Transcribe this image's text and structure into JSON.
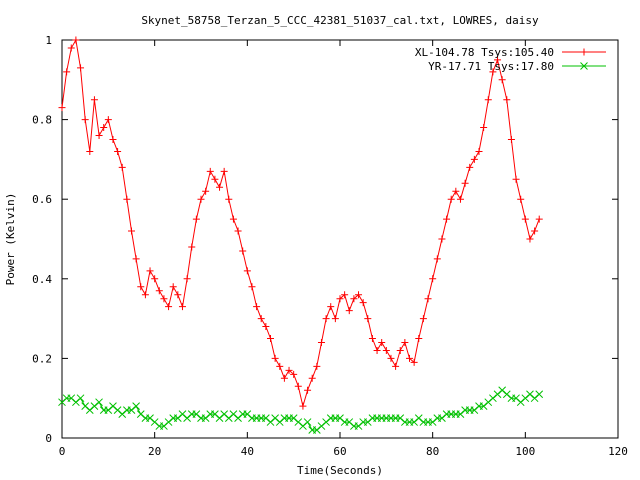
{
  "chart_data": {
    "type": "line",
    "title": "Skynet_58758_Terzan_5_CCC_42381_51037_cal.txt, LOWRES, daisy",
    "xlabel": "Time(Seconds)",
    "ylabel": "Power (Kelvin)",
    "xlim": [
      0,
      120
    ],
    "ylim": [
      0,
      1
    ],
    "xticks": [
      "0",
      "20",
      "40",
      "60",
      "80",
      "100",
      "120"
    ],
    "yticks": [
      "0",
      "0.2",
      "0.4",
      "0.6",
      "0.8",
      "1"
    ],
    "grid": false,
    "legend_position": "top-right",
    "series": [
      {
        "name": "XL-104.78 Tsys:105.40",
        "color": "#ff0000",
        "marker": "plus",
        "x": [
          0,
          1,
          2,
          3,
          4,
          5,
          6,
          7,
          8,
          9,
          10,
          11,
          12,
          13,
          14,
          15,
          16,
          17,
          18,
          19,
          20,
          21,
          22,
          23,
          24,
          25,
          26,
          27,
          28,
          29,
          30,
          31,
          32,
          33,
          34,
          35,
          36,
          37,
          38,
          39,
          40,
          41,
          42,
          43,
          44,
          45,
          46,
          47,
          48,
          49,
          50,
          51,
          52,
          53,
          54,
          55,
          56,
          57,
          58,
          59,
          60,
          61,
          62,
          63,
          64,
          65,
          66,
          67,
          68,
          69,
          70,
          71,
          72,
          73,
          74,
          75,
          76,
          77,
          78,
          79,
          80,
          81,
          82,
          83,
          84,
          85,
          86,
          87,
          88,
          89,
          90,
          91,
          92,
          93,
          94,
          95,
          96,
          97,
          98,
          99,
          100,
          101,
          102,
          103
        ],
        "y": [
          0.83,
          0.92,
          0.98,
          1.0,
          0.93,
          0.8,
          0.72,
          0.85,
          0.76,
          0.78,
          0.8,
          0.75,
          0.72,
          0.68,
          0.6,
          0.52,
          0.45,
          0.38,
          0.36,
          0.42,
          0.4,
          0.37,
          0.35,
          0.33,
          0.38,
          0.36,
          0.33,
          0.4,
          0.48,
          0.55,
          0.6,
          0.62,
          0.67,
          0.65,
          0.63,
          0.67,
          0.6,
          0.55,
          0.52,
          0.47,
          0.42,
          0.38,
          0.33,
          0.3,
          0.28,
          0.25,
          0.2,
          0.18,
          0.15,
          0.17,
          0.16,
          0.13,
          0.08,
          0.12,
          0.15,
          0.18,
          0.24,
          0.3,
          0.33,
          0.3,
          0.35,
          0.36,
          0.32,
          0.35,
          0.36,
          0.34,
          0.3,
          0.25,
          0.22,
          0.24,
          0.22,
          0.2,
          0.18,
          0.22,
          0.24,
          0.2,
          0.19,
          0.25,
          0.3,
          0.35,
          0.4,
          0.45,
          0.5,
          0.55,
          0.6,
          0.62,
          0.6,
          0.64,
          0.68,
          0.7,
          0.72,
          0.78,
          0.85,
          0.92,
          0.95,
          0.9,
          0.85,
          0.75,
          0.65,
          0.6,
          0.55,
          0.5,
          0.52,
          0.55
        ]
      },
      {
        "name": "YR-17.71 Tsys:17.80",
        "color": "#00c000",
        "marker": "x",
        "x": [
          0,
          1,
          2,
          3,
          4,
          5,
          6,
          7,
          8,
          9,
          10,
          11,
          12,
          13,
          14,
          15,
          16,
          17,
          18,
          19,
          20,
          21,
          22,
          23,
          24,
          25,
          26,
          27,
          28,
          29,
          30,
          31,
          32,
          33,
          34,
          35,
          36,
          37,
          38,
          39,
          40,
          41,
          42,
          43,
          44,
          45,
          46,
          47,
          48,
          49,
          50,
          51,
          52,
          53,
          54,
          55,
          56,
          57,
          58,
          59,
          60,
          61,
          62,
          63,
          64,
          65,
          66,
          67,
          68,
          69,
          70,
          71,
          72,
          73,
          74,
          75,
          76,
          77,
          78,
          79,
          80,
          81,
          82,
          83,
          84,
          85,
          86,
          87,
          88,
          89,
          90,
          91,
          92,
          93,
          94,
          95,
          96,
          97,
          98,
          99,
          100,
          101,
          102,
          103
        ],
        "y": [
          0.09,
          0.1,
          0.1,
          0.09,
          0.1,
          0.08,
          0.07,
          0.08,
          0.09,
          0.07,
          0.07,
          0.08,
          0.07,
          0.06,
          0.07,
          0.07,
          0.08,
          0.06,
          0.05,
          0.05,
          0.04,
          0.03,
          0.03,
          0.04,
          0.05,
          0.05,
          0.06,
          0.05,
          0.06,
          0.06,
          0.05,
          0.05,
          0.06,
          0.06,
          0.05,
          0.06,
          0.05,
          0.06,
          0.05,
          0.06,
          0.06,
          0.05,
          0.05,
          0.05,
          0.05,
          0.04,
          0.05,
          0.04,
          0.05,
          0.05,
          0.05,
          0.04,
          0.03,
          0.04,
          0.02,
          0.02,
          0.03,
          0.04,
          0.05,
          0.05,
          0.05,
          0.04,
          0.04,
          0.03,
          0.03,
          0.04,
          0.04,
          0.05,
          0.05,
          0.05,
          0.05,
          0.05,
          0.05,
          0.05,
          0.04,
          0.04,
          0.04,
          0.05,
          0.04,
          0.04,
          0.04,
          0.05,
          0.05,
          0.06,
          0.06,
          0.06,
          0.06,
          0.07,
          0.07,
          0.07,
          0.08,
          0.08,
          0.09,
          0.1,
          0.11,
          0.12,
          0.11,
          0.1,
          0.1,
          0.09,
          0.1,
          0.11,
          0.1,
          0.11
        ]
      }
    ]
  }
}
